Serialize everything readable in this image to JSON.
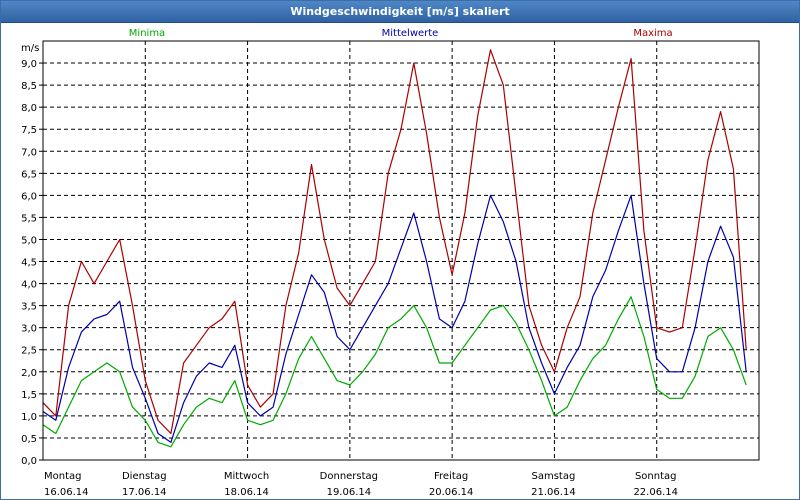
{
  "window": {
    "title": "Windgeschwindigkeit [m/s] skaliert"
  },
  "colors": {
    "minima": "#00aa00",
    "mittel": "#0000aa",
    "maxima": "#aa0000",
    "grid": "#000000",
    "axis": "#000000",
    "frame_border": "#3a6ea5"
  },
  "chart_data": {
    "type": "line",
    "title": "Windgeschwindigkeit [m/s] skaliert",
    "ylabel": "m/s",
    "xlabel": "",
    "ylim": [
      0,
      9.5
    ],
    "yticks": [
      "0,0",
      "0,5",
      "1,0",
      "1,5",
      "2,0",
      "2,5",
      "3,0",
      "3,5",
      "4,0",
      "4,5",
      "5,0",
      "5,5",
      "6,0",
      "6,5",
      "7,0",
      "7,5",
      "8,0",
      "8,5",
      "9,0"
    ],
    "xlim": [
      0,
      7
    ],
    "x_ticks": [
      {
        "day": "Montag",
        "date": "16.06.14"
      },
      {
        "day": "Dienstag",
        "date": "17.06.14"
      },
      {
        "day": "Mittwoch",
        "date": "18.06.14"
      },
      {
        "day": "Donnerstag",
        "date": "19.06.14"
      },
      {
        "day": "Freitag",
        "date": "20.06.14"
      },
      {
        "day": "Samstag",
        "date": "21.06.14"
      },
      {
        "day": "Sonntag",
        "date": "22.06.14"
      }
    ],
    "grid": true,
    "legend_position": "top",
    "x": [
      0,
      0.125,
      0.25,
      0.375,
      0.5,
      0.625,
      0.75,
      0.875,
      1,
      1.125,
      1.25,
      1.375,
      1.5,
      1.625,
      1.75,
      1.875,
      2,
      2.125,
      2.25,
      2.375,
      2.5,
      2.625,
      2.75,
      2.875,
      3,
      3.125,
      3.25,
      3.375,
      3.5,
      3.625,
      3.75,
      3.875,
      4,
      4.125,
      4.25,
      4.375,
      4.5,
      4.625,
      4.75,
      4.875,
      5,
      5.125,
      5.25,
      5.375,
      5.5,
      5.625,
      5.75,
      5.875,
      6,
      6.125,
      6.25,
      6.375,
      6.5,
      6.625,
      6.75,
      6.875
    ],
    "series": [
      {
        "name": "Minima",
        "values": [
          0.8,
          0.6,
          1.2,
          1.8,
          2.0,
          2.2,
          2.0,
          1.2,
          0.9,
          0.4,
          0.3,
          0.8,
          1.2,
          1.4,
          1.3,
          1.8,
          0.9,
          0.8,
          0.9,
          1.5,
          2.3,
          2.8,
          2.3,
          1.8,
          1.7,
          2.0,
          2.4,
          3.0,
          3.2,
          3.5,
          3.0,
          2.2,
          2.2,
          2.6,
          3.0,
          3.4,
          3.5,
          3.1,
          2.5,
          1.8,
          1.0,
          1.2,
          1.8,
          2.3,
          2.6,
          3.2,
          3.7,
          2.8,
          1.6,
          1.4,
          1.4,
          1.9,
          2.8,
          3.0,
          2.5,
          1.7
        ]
      },
      {
        "name": "Mittelwerte",
        "values": [
          1.1,
          0.9,
          2.1,
          2.9,
          3.2,
          3.3,
          3.6,
          2.1,
          1.4,
          0.6,
          0.4,
          1.3,
          1.9,
          2.2,
          2.1,
          2.6,
          1.3,
          1.0,
          1.2,
          2.4,
          3.3,
          4.2,
          3.8,
          2.8,
          2.5,
          3.0,
          3.5,
          4.0,
          4.8,
          5.6,
          4.5,
          3.2,
          3.0,
          3.6,
          4.9,
          6.0,
          5.4,
          4.5,
          3.0,
          2.2,
          1.5,
          2.1,
          2.6,
          3.7,
          4.3,
          5.2,
          6.0,
          4.0,
          2.3,
          2.0,
          2.0,
          3.0,
          4.5,
          5.3,
          4.6,
          2.0
        ]
      },
      {
        "name": "Maxima",
        "values": [
          1.3,
          1.0,
          3.5,
          4.5,
          4.0,
          4.5,
          5.0,
          3.5,
          1.8,
          0.9,
          0.6,
          2.2,
          2.6,
          3.0,
          3.2,
          3.6,
          1.7,
          1.2,
          1.5,
          3.5,
          4.7,
          6.7,
          5.0,
          3.9,
          3.5,
          4.0,
          4.5,
          6.5,
          7.5,
          9.0,
          7.4,
          5.5,
          4.2,
          5.6,
          7.8,
          9.3,
          8.5,
          6.0,
          3.5,
          2.6,
          2.0,
          3.0,
          3.7,
          5.6,
          6.8,
          8.0,
          9.1,
          5.2,
          3.0,
          2.9,
          3.0,
          4.8,
          6.8,
          7.9,
          6.6,
          2.5
        ]
      }
    ]
  }
}
